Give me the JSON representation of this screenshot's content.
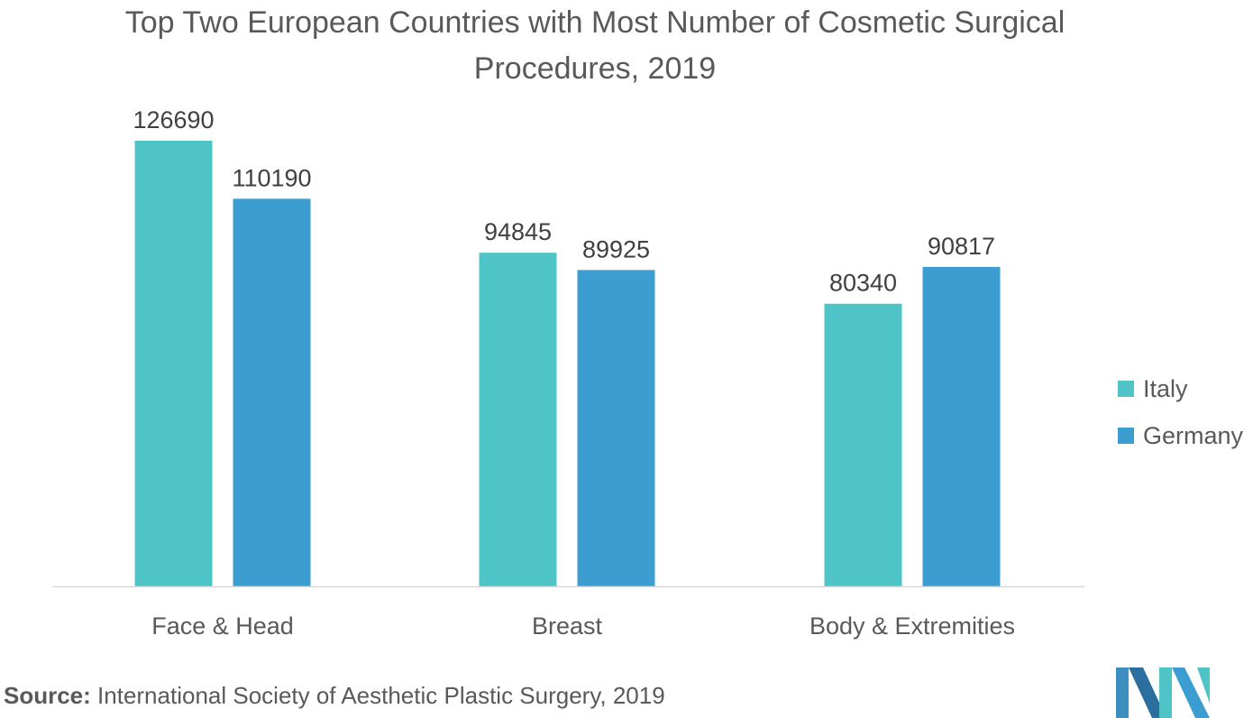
{
  "chart_data": {
    "type": "bar",
    "title": "Top Two European Countries with Most Number of Cosmetic Surgical Procedures, 2019",
    "categories": [
      "Face & Head",
      "Breast",
      "Body & Extremities"
    ],
    "series": [
      {
        "name": "Italy",
        "values": [
          126690,
          94845,
          80340
        ],
        "color": "#4fc4c7"
      },
      {
        "name": "Germany",
        "values": [
          110190,
          89925,
          90817
        ],
        "color": "#3c9dd0"
      }
    ],
    "xlabel": "",
    "ylabel": "",
    "ylim": [
      0,
      130000
    ],
    "grid": false,
    "data_labels": true,
    "legend_position": "right"
  },
  "source": {
    "prefix": "Source:",
    "text": " International Society of Aesthetic Plastic Surgery, 2019"
  },
  "logo": {
    "icon": "mordor-intelligence-logo-icon"
  }
}
